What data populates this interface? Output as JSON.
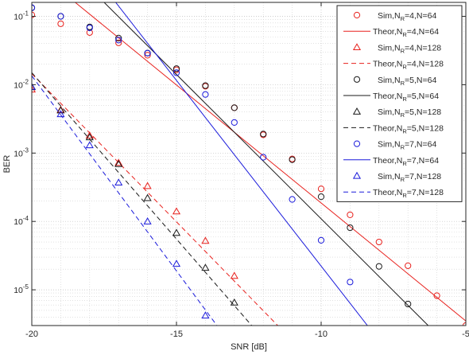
{
  "chart_data": {
    "type": "line",
    "title": "",
    "xlabel": "SNR [dB]",
    "ylabel": "BER",
    "xlim": [
      -20,
      -5
    ],
    "ylim": [
      3e-06,
      0.16
    ],
    "yscale": "log",
    "grid": true,
    "legend_position": "top-right",
    "x_ticks": [
      -20,
      -15,
      -10,
      -5
    ],
    "x_tick_labels": [
      "-20",
      "-15",
      "-10",
      "-5"
    ],
    "y_ticks": [
      1e-05,
      0.0001,
      0.001,
      0.01,
      0.1
    ],
    "y_tick_labels": [
      {
        "base": "10",
        "exp": "-5"
      },
      {
        "base": "10",
        "exp": "-4"
      },
      {
        "base": "10",
        "exp": "-3"
      },
      {
        "base": "10",
        "exp": "-2"
      },
      {
        "base": "10",
        "exp": "-1"
      }
    ],
    "series": [
      {
        "legend": {
          "pre": "Sim,N",
          "sub": "R",
          "post": "=4,N=64"
        },
        "kind": "marker",
        "marker": "circle",
        "color": "#e8211d",
        "x": [
          -20,
          -19,
          -18,
          -17,
          -16,
          -15,
          -14,
          -13,
          -12,
          -11,
          -10,
          -9,
          -8,
          -7,
          -6,
          -5
        ],
        "y": [
          0.105,
          0.078,
          0.058,
          0.041,
          0.027,
          0.0165,
          0.0095,
          0.0046,
          0.00185,
          0.00082,
          0.0003,
          0.000125,
          5e-05,
          2.25e-05,
          8.2e-06,
          3e-06
        ]
      },
      {
        "legend": {
          "pre": "Theor,N",
          "sub": "R",
          "post": "=4,N=64"
        },
        "kind": "line",
        "dash": "solid",
        "color": "#e8211d",
        "x": [
          -18.5,
          -5
        ],
        "y": [
          0.16,
          3.5e-06
        ]
      },
      {
        "legend": {
          "pre": "Sim,N",
          "sub": "R",
          "post": "=4,N=128"
        },
        "kind": "marker",
        "marker": "triangle",
        "color": "#e8211d",
        "x": [
          -20,
          -19,
          -18,
          -17,
          -16,
          -15,
          -14,
          -13
        ],
        "y": [
          0.0085,
          0.0043,
          0.0018,
          0.00072,
          0.00033,
          0.00014,
          5.2e-05,
          1.6e-05
        ]
      },
      {
        "legend": {
          "pre": "Theor,N",
          "sub": "R",
          "post": "=4,N=128"
        },
        "kind": "line",
        "dash": "dashed",
        "color": "#e8211d",
        "x": [
          -20,
          -11.5
        ],
        "y": [
          0.0145,
          3e-06
        ]
      },
      {
        "legend": {
          "pre": "Sim,N",
          "sub": "R",
          "post": "=5,N=64"
        },
        "kind": "marker",
        "marker": "circle",
        "color": "#1a1a1a",
        "x": [
          -20,
          -19,
          -18,
          -17,
          -16,
          -15,
          -14,
          -13,
          -12,
          -11,
          -10,
          -9,
          -8,
          -7
        ],
        "y": [
          0.133,
          0.1,
          0.07,
          0.048,
          0.029,
          0.0172,
          0.0097,
          0.0046,
          0.0019,
          0.0008,
          0.00023,
          8.1e-05,
          2.2e-05,
          6.2e-06
        ]
      },
      {
        "legend": {
          "pre": "Theor,N",
          "sub": "R",
          "post": "=5,N=64"
        },
        "kind": "line",
        "dash": "solid",
        "color": "#1a1a1a",
        "x": [
          -17.5,
          -6.3
        ],
        "y": [
          0.16,
          3e-06
        ]
      },
      {
        "legend": {
          "pre": "Sim,N",
          "sub": "R",
          "post": "=5,N=128"
        },
        "kind": "marker",
        "marker": "triangle",
        "color": "#1a1a1a",
        "x": [
          -20,
          -19,
          -18,
          -17,
          -16,
          -15,
          -14,
          -13
        ],
        "y": [
          0.0092,
          0.0042,
          0.0017,
          0.00069,
          0.00022,
          6.8e-05,
          2.1e-05,
          6.5e-06
        ]
      },
      {
        "legend": {
          "pre": "Theor,N",
          "sub": "R",
          "post": "=5,N=128"
        },
        "kind": "line",
        "dash": "dashed",
        "color": "#1a1a1a",
        "x": [
          -20,
          -12.4
        ],
        "y": [
          0.015,
          3e-06
        ]
      },
      {
        "legend": {
          "pre": "Sim,N",
          "sub": "R",
          "post": "=7,N=64"
        },
        "kind": "marker",
        "marker": "circle",
        "color": "#1a1adb",
        "x": [
          -20,
          -19,
          -18,
          -17,
          -16,
          -15,
          -14,
          -13,
          -12,
          -11,
          -10,
          -9
        ],
        "y": [
          0.134,
          0.1,
          0.068,
          0.045,
          0.029,
          0.015,
          0.0072,
          0.0028,
          0.00087,
          0.00021,
          5.3e-05,
          1.3e-05
        ]
      },
      {
        "legend": {
          "pre": "Theor,N",
          "sub": "R",
          "post": "=7,N=64"
        },
        "kind": "line",
        "dash": "solid",
        "color": "#1a1adb",
        "x": [
          -17.1,
          -8.4
        ],
        "y": [
          0.16,
          3e-06
        ]
      },
      {
        "legend": {
          "pre": "Sim,N",
          "sub": "R",
          "post": "=7,N=128"
        },
        "kind": "marker",
        "marker": "triangle",
        "color": "#1a1adb",
        "x": [
          -20,
          -19,
          -18,
          -17,
          -16,
          -15,
          -14
        ],
        "y": [
          0.0093,
          0.0037,
          0.0013,
          0.00037,
          0.0001,
          2.4e-05,
          4.2e-06
        ]
      },
      {
        "legend": {
          "pre": "Theor,N",
          "sub": "R",
          "post": "=7,N=128"
        },
        "kind": "line",
        "dash": "dashed",
        "color": "#1a1adb",
        "x": [
          -20,
          -13.6
        ],
        "y": [
          0.0135,
          3e-06
        ]
      }
    ]
  }
}
